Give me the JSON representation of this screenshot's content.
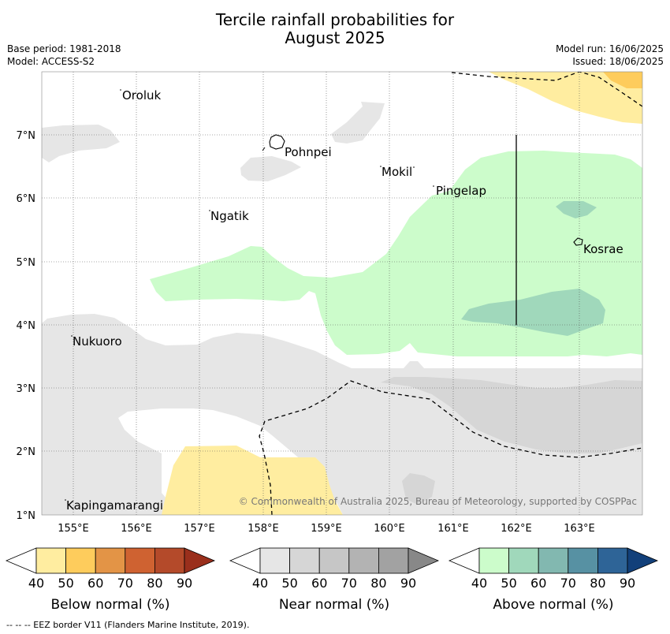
{
  "title_line1": "Tercile rainfall probabilities for",
  "title_line2": "August 2025",
  "base_period": "Base period: 1981-2018",
  "model": "Model: ACCESS-S2",
  "model_run": "Model run: 16/06/2025",
  "issued": "Issued: 18/06/2025",
  "map": {
    "lon_ticks": [
      "155°E",
      "156°E",
      "157°E",
      "158°E",
      "159°E",
      "160°E",
      "161°E",
      "162°E",
      "163°E"
    ],
    "lat_ticks": [
      "7°N",
      "6°N",
      "5°N",
      "4°N",
      "3°N",
      "2°N",
      "1°N"
    ],
    "places": [
      {
        "id": "oroluk",
        "name": "Oroluk"
      },
      {
        "id": "pohnpei",
        "name": "Pohnpei"
      },
      {
        "id": "mokil",
        "name": "Mokil"
      },
      {
        "id": "pingelap",
        "name": "Pingelap"
      },
      {
        "id": "ngatik",
        "name": "Ngatik"
      },
      {
        "id": "kosrae",
        "name": "Kosrae"
      },
      {
        "id": "nukuoro",
        "name": "Nukuoro"
      },
      {
        "id": "kapingamarangi",
        "name": "Kapingamarangi"
      }
    ],
    "copyright": "© Commonwealth of Australia 2025, Bureau of Meteorology, supported by COSPPac"
  },
  "colorbars": [
    {
      "label": "Below normal (%)",
      "ticks": [
        "40",
        "50",
        "60",
        "70",
        "80",
        "90"
      ],
      "colors": [
        "#ffeda0",
        "#fecc5c",
        "#e39446",
        "#cf6231",
        "#b44a2a",
        "#9a2f1c"
      ]
    },
    {
      "label": "Near normal (%)",
      "ticks": [
        "40",
        "50",
        "60",
        "70",
        "80",
        "90"
      ],
      "colors": [
        "#e6e6e6",
        "#d6d6d6",
        "#c6c6c6",
        "#b3b3b3",
        "#a2a2a2",
        "#888888"
      ]
    },
    {
      "label": "Above normal (%)",
      "ticks": [
        "40",
        "50",
        "60",
        "70",
        "80",
        "90"
      ],
      "colors": [
        "#ccfccb",
        "#a0d8bb",
        "#82b8b0",
        "#5791a3",
        "#2e6497",
        "#12407a"
      ]
    }
  ],
  "footnote": "--  --  -- EEZ border V11 (Flanders Marine Institute, 2019)."
}
